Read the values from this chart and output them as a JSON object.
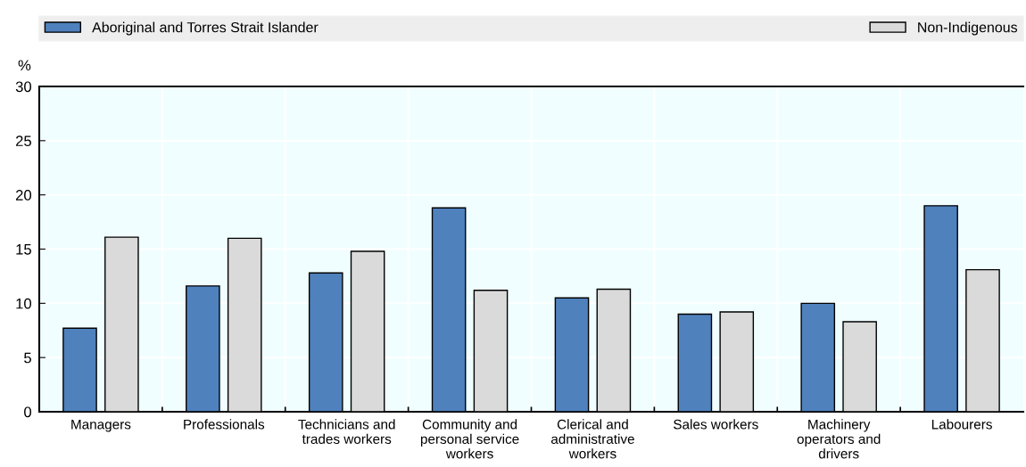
{
  "chart_data": {
    "type": "bar",
    "ylabel": "%",
    "categories": [
      "Managers",
      "Professionals",
      "Technicians and\ntrades workers",
      "Community and\npersonal service\nworkers",
      "Clerical and\nadministrative\nworkers",
      "Sales workers",
      "Machinery\noperators and\ndrivers",
      "Labourers"
    ],
    "series": [
      {
        "name": "Aboriginal and Torres Strait Islander",
        "color": "#4f81bd",
        "values": [
          7.7,
          11.6,
          12.8,
          18.8,
          10.5,
          9.0,
          10.0,
          19.0
        ]
      },
      {
        "name": "Non-Indigenous",
        "color": "#dadada",
        "values": [
          16.1,
          16.0,
          14.8,
          11.2,
          11.3,
          9.2,
          8.3,
          13.1
        ]
      }
    ],
    "ylim": [
      0,
      30
    ],
    "yticks": [
      0,
      5,
      10,
      15,
      20,
      25,
      30
    ],
    "grid": true,
    "legend": "top"
  }
}
